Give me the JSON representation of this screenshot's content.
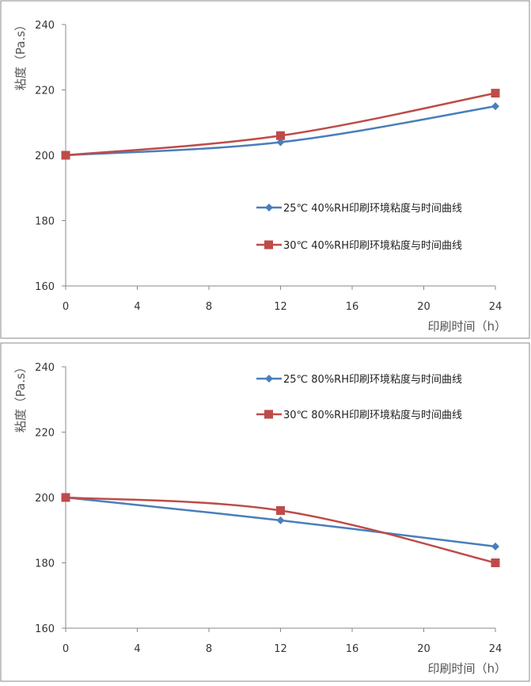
{
  "chart_data": [
    {
      "type": "line",
      "x": [
        0,
        12,
        24
      ],
      "xticks": [
        "0",
        "4",
        "8",
        "12",
        "16",
        "20",
        "24"
      ],
      "yticks": [
        "160",
        "180",
        "200",
        "220",
        "240"
      ],
      "xlim": [
        0,
        24
      ],
      "ylim": [
        160,
        240
      ],
      "xlabel": "印刷时间（h）",
      "ylabel": "粘度（Pa.s）",
      "grid": false,
      "legend_position": "center-right",
      "series": [
        {
          "name": "25℃ 40%RH印刷环境粘度与时间曲线",
          "values": [
            200,
            204,
            215
          ],
          "color": "#4a7ebb",
          "marker": "diamond"
        },
        {
          "name": "30℃ 40%RH印刷环境粘度与时间曲线",
          "values": [
            200,
            206,
            219
          ],
          "color": "#be4b48",
          "marker": "square"
        }
      ]
    },
    {
      "type": "line",
      "x": [
        0,
        12,
        24
      ],
      "xticks": [
        "0",
        "4",
        "8",
        "12",
        "16",
        "20",
        "24"
      ],
      "yticks": [
        "160",
        "180",
        "200",
        "220",
        "240"
      ],
      "xlim": [
        0,
        24
      ],
      "ylim": [
        160,
        240
      ],
      "xlabel": "印刷时间（h）",
      "ylabel": "粘度（Pa.s）",
      "grid": false,
      "legend_position": "top-right",
      "series": [
        {
          "name": "25℃ 80%RH印刷环境粘度与时间曲线",
          "values": [
            200,
            193,
            185
          ],
          "color": "#4a7ebb",
          "marker": "diamond"
        },
        {
          "name": "30℃ 80%RH印刷环境粘度与时间曲线",
          "values": [
            200,
            196,
            180
          ],
          "color": "#be4b48",
          "marker": "square"
        }
      ]
    }
  ]
}
